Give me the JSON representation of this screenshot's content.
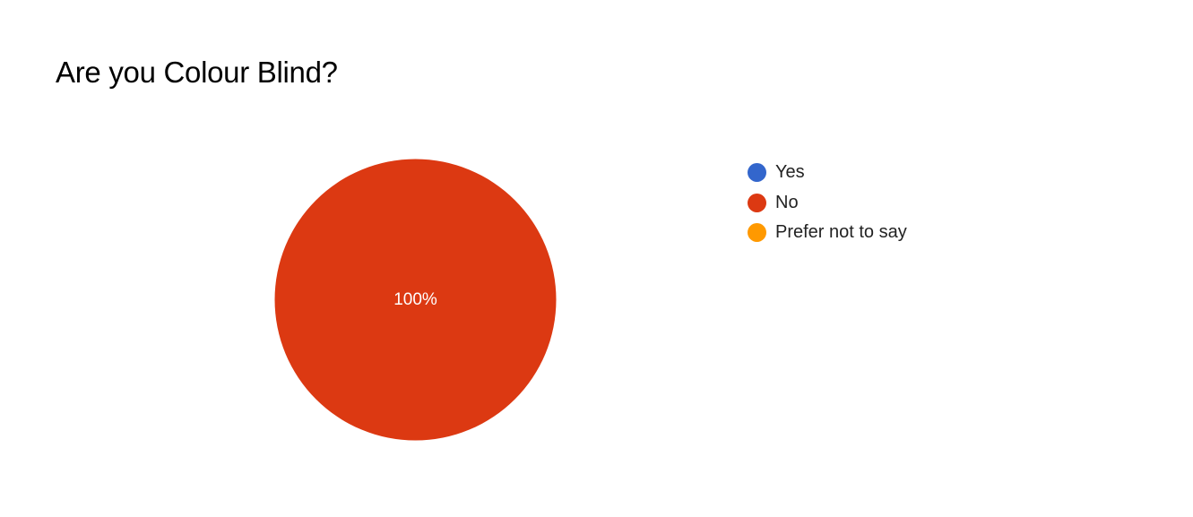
{
  "chart_data": {
    "type": "pie",
    "title": "Are you Colour Blind?",
    "legend_position": "right",
    "slices": [
      {
        "label": "Yes",
        "value": 0,
        "color": "#3366cc",
        "display_label": ""
      },
      {
        "label": "No",
        "value": 100,
        "color": "#dc3912",
        "display_label": "100%"
      },
      {
        "label": "Prefer not to say",
        "value": 0,
        "color": "#ff9900",
        "display_label": ""
      }
    ]
  }
}
